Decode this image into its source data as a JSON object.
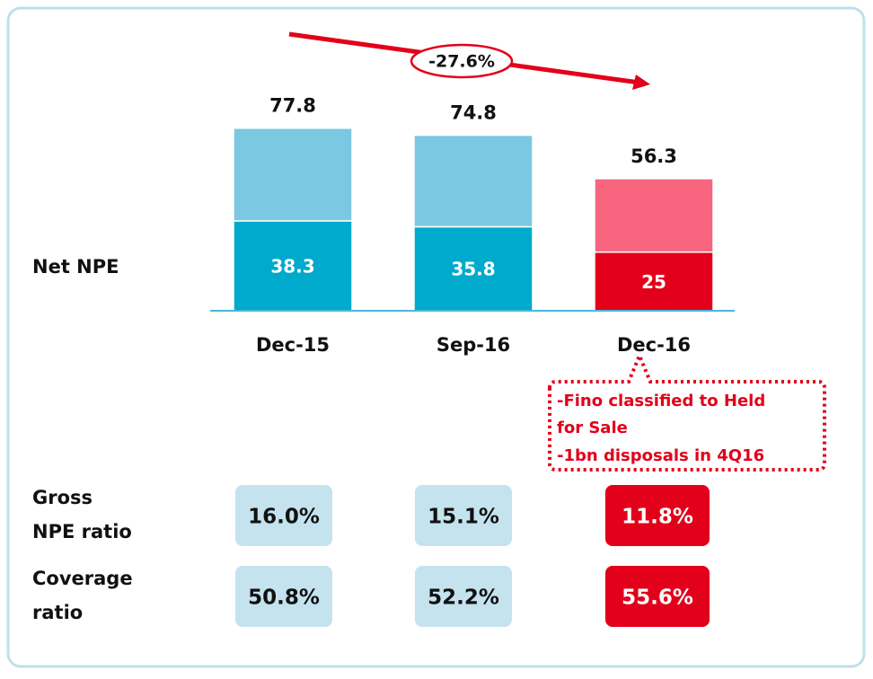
{
  "chart_data": {
    "type": "bar",
    "row_label": "Net NPE",
    "categories": [
      "Dec-15",
      "Sep-16",
      "Dec-16"
    ],
    "series": [
      {
        "values": [
          38.3,
          35.8,
          25.0
        ],
        "colors": [
          "#00aacc",
          "#00aacc",
          "#e2001a"
        ]
      },
      {
        "values": [
          39.5,
          39.0,
          31.3
        ],
        "colors": [
          "#7ac8e2",
          "#7ac8e2",
          "#f7657e"
        ]
      }
    ],
    "totals": [
      77.8,
      74.8,
      56.3
    ],
    "ylim": [
      0,
      80
    ],
    "trend_annotation": "-27.6%",
    "callout": [
      "-Fino classified to Held",
      "for Sale",
      "-1bn disposals in 4Q16"
    ],
    "table": {
      "rows": [
        {
          "label": [
            "Gross",
            "NPE ratio"
          ],
          "values": [
            "16.0%",
            "15.1%",
            "11.8%"
          ],
          "highlight": [
            false,
            false,
            true
          ]
        },
        {
          "label": [
            "Coverage",
            "ratio"
          ],
          "values": [
            "50.8%",
            "52.2%",
            "55.6%"
          ],
          "highlight": [
            false,
            false,
            true
          ]
        }
      ]
    }
  }
}
